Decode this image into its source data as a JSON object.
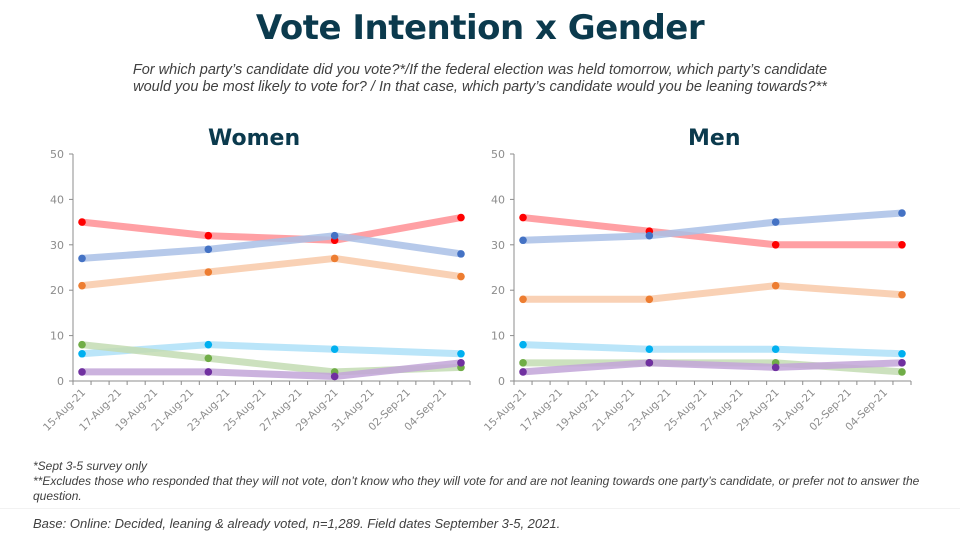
{
  "title": "Vote Intention x Gender",
  "subtitle_line1": "For which party’s candidate did you vote?*/If the federal election was held tomorrow, which party’s candidate",
  "subtitle_line2": "would you be most likely to vote for? / In that case, which party’s candidate would you be leaning towards?**",
  "footnote1": "*Sept 3-5  survey only",
  "footnote2": "**Excludes  those who responded  that they will not vote, don’t know who they will vote for and are not leaning  towards one party’s candidate,  or prefer  not to answer the question.",
  "base": "Base: Online: Decided, leaning & already voted, n=1,289. Field dates September 3-5, 2021.",
  "chart_data": [
    {
      "type": "line",
      "title": "Women",
      "xlabel": "",
      "ylabel": "",
      "ylim": [
        0,
        50
      ],
      "yticks": [
        0,
        10,
        20,
        30,
        40,
        50
      ],
      "x_tick_labels": [
        "15-Aug-21",
        "17-Aug-21",
        "19-Aug-21",
        "21-Aug-21",
        "23-Aug-21",
        "25-Aug-21",
        "27-Aug-21",
        "29-Aug-21",
        "31-Aug-21",
        "02-Sep-21",
        "04-Sep-21"
      ],
      "x_day_count": 22,
      "x": [
        0,
        7,
        14,
        21
      ],
      "x_dates": [
        "15-Aug-21",
        "22-Aug-21",
        "29-Aug-21",
        "05-Sep-21"
      ],
      "grid": false,
      "legend": "none",
      "series": [
        {
          "name": "red",
          "line_color": "#ff8f94",
          "marker_color": "#ff0000",
          "values": [
            35,
            32,
            31,
            36
          ]
        },
        {
          "name": "blue",
          "line_color": "#a9bfe6",
          "marker_color": "#4472c4",
          "values": [
            27,
            29,
            32,
            28
          ]
        },
        {
          "name": "orange",
          "line_color": "#f8c9a8",
          "marker_color": "#ed7d31",
          "values": [
            21,
            24,
            27,
            23
          ]
        },
        {
          "name": "cyan",
          "line_color": "#aee0f8",
          "marker_color": "#00b0f0",
          "values": [
            6,
            8,
            7,
            6
          ]
        },
        {
          "name": "green",
          "line_color": "#c3dcb3",
          "marker_color": "#70ad47",
          "values": [
            8,
            5,
            2,
            3
          ]
        },
        {
          "name": "purple",
          "line_color": "#c2a5d8",
          "marker_color": "#7030a0",
          "values": [
            2,
            2,
            1,
            4
          ]
        }
      ]
    },
    {
      "type": "line",
      "title": "Men",
      "xlabel": "",
      "ylabel": "",
      "ylim": [
        0,
        50
      ],
      "yticks": [
        0,
        10,
        20,
        30,
        40,
        50
      ],
      "x_tick_labels": [
        "15-Aug-21",
        "17-Aug-21",
        "19-Aug-21",
        "21-Aug-21",
        "23-Aug-21",
        "25-Aug-21",
        "27-Aug-21",
        "29-Aug-21",
        "31-Aug-21",
        "02-Sep-21",
        "04-Sep-21"
      ],
      "x_day_count": 22,
      "x": [
        0,
        7,
        14,
        21
      ],
      "x_dates": [
        "15-Aug-21",
        "22-Aug-21",
        "29-Aug-21",
        "05-Sep-21"
      ],
      "grid": false,
      "legend": "none",
      "series": [
        {
          "name": "red",
          "line_color": "#ff8f94",
          "marker_color": "#ff0000",
          "values": [
            36,
            33,
            30,
            30
          ]
        },
        {
          "name": "blue",
          "line_color": "#a9bfe6",
          "marker_color": "#4472c4",
          "values": [
            31,
            32,
            35,
            37
          ]
        },
        {
          "name": "orange",
          "line_color": "#f8c9a8",
          "marker_color": "#ed7d31",
          "values": [
            18,
            18,
            21,
            19
          ]
        },
        {
          "name": "cyan",
          "line_color": "#aee0f8",
          "marker_color": "#00b0f0",
          "values": [
            8,
            7,
            7,
            6
          ]
        },
        {
          "name": "green",
          "line_color": "#c3dcb3",
          "marker_color": "#70ad47",
          "values": [
            4,
            4,
            4,
            2
          ]
        },
        {
          "name": "purple",
          "line_color": "#c2a5d8",
          "marker_color": "#7030a0",
          "values": [
            2,
            4,
            3,
            4
          ]
        }
      ]
    }
  ]
}
